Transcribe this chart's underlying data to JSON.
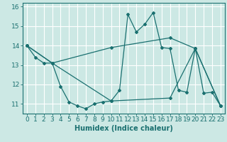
{
  "xlabel": "Humidex (Indice chaleur)",
  "xlim": [
    -0.5,
    23.5
  ],
  "ylim": [
    10.5,
    16.2
  ],
  "yticks": [
    11,
    12,
    13,
    14,
    15,
    16
  ],
  "xticks": [
    0,
    1,
    2,
    3,
    4,
    5,
    6,
    7,
    8,
    9,
    10,
    11,
    12,
    13,
    14,
    15,
    16,
    17,
    18,
    19,
    20,
    21,
    22,
    23
  ],
  "background_color": "#cce8e4",
  "grid_color": "#ffffff",
  "line_color": "#1a7070",
  "line1_x": [
    0,
    1,
    2,
    3,
    4,
    5,
    6,
    7,
    8,
    9,
    10,
    11,
    12,
    13,
    14,
    15,
    16,
    17,
    18,
    19,
    20,
    21,
    22,
    23
  ],
  "line1_y": [
    14.0,
    13.4,
    13.1,
    13.1,
    11.9,
    11.1,
    10.9,
    10.75,
    11.0,
    11.1,
    11.15,
    11.7,
    15.6,
    14.7,
    15.1,
    15.7,
    13.9,
    13.85,
    11.7,
    11.6,
    13.85,
    11.55,
    11.6,
    10.9
  ],
  "line2_x": [
    0,
    3,
    10,
    17,
    20,
    23
  ],
  "line2_y": [
    14.0,
    13.1,
    13.9,
    14.4,
    13.85,
    10.9
  ],
  "line3_x": [
    0,
    3,
    10,
    17,
    20,
    23
  ],
  "line3_y": [
    14.0,
    13.1,
    11.15,
    11.3,
    13.85,
    10.9
  ],
  "line_width": 0.9,
  "marker": "D",
  "marker_size": 2.0,
  "font_size_label": 7,
  "font_size_tick": 6.5
}
